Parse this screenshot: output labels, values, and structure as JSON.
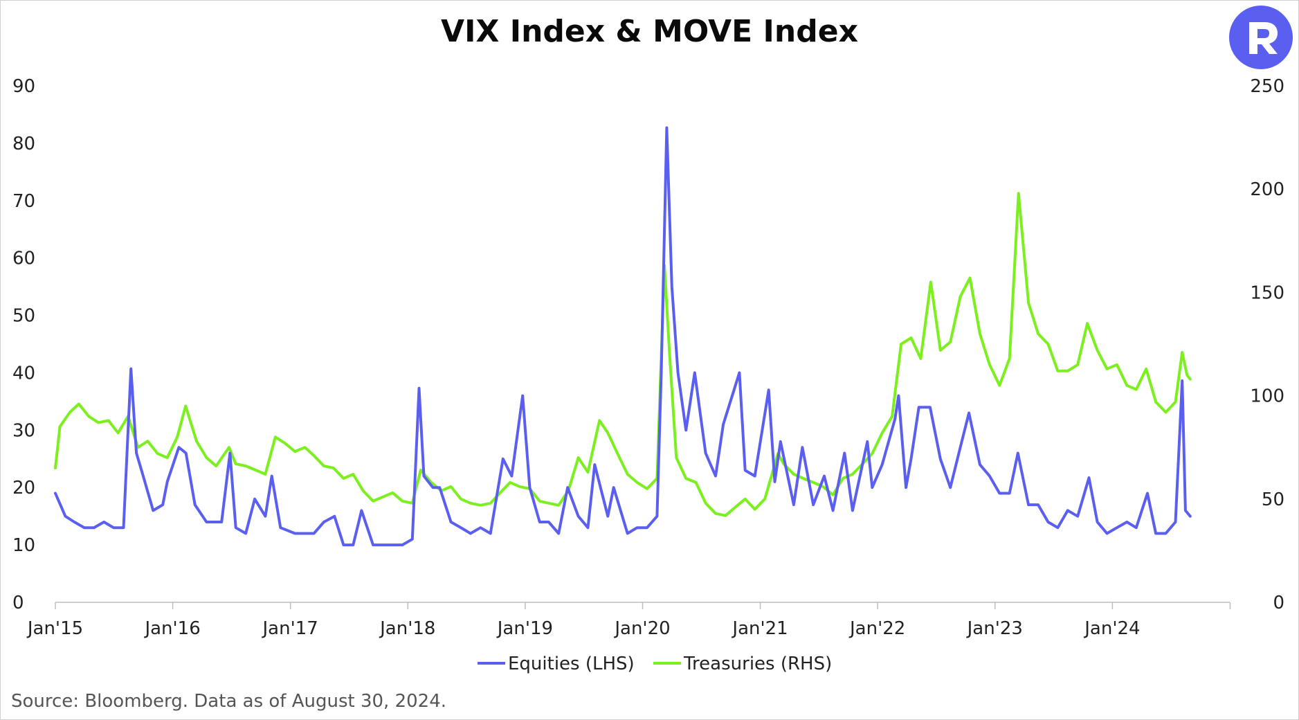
{
  "chart_data": {
    "type": "line",
    "title": "VIX Index & MOVE Index",
    "source": "Source: Bloomberg. Data as of August 30, 2024.",
    "x_tick_labels": [
      "Jan'15",
      "Jan'16",
      "Jan'17",
      "Jan'18",
      "Jan'19",
      "Jan'20",
      "Jan'21",
      "Jan'22",
      "Jan'23",
      "Jan'24"
    ],
    "y_left": {
      "ticks": [
        0,
        10,
        20,
        30,
        40,
        50,
        60,
        70,
        80,
        90
      ],
      "range": [
        0,
        90
      ]
    },
    "y_right": {
      "ticks": [
        0,
        50,
        100,
        150,
        200,
        250
      ],
      "range": [
        0,
        250
      ]
    },
    "x_range": [
      "2015-01-01",
      "2024-12-31"
    ],
    "legend_position": "bottom-center",
    "grid": false,
    "series": [
      {
        "name": "Equities (LHS)",
        "axis": "left",
        "color": "#5b5ff0",
        "points": [
          [
            "2015-01-01",
            19
          ],
          [
            "2015-02-01",
            15
          ],
          [
            "2015-03-01",
            14
          ],
          [
            "2015-04-01",
            13
          ],
          [
            "2015-05-01",
            13
          ],
          [
            "2015-06-01",
            14
          ],
          [
            "2015-07-01",
            13
          ],
          [
            "2015-08-01",
            13
          ],
          [
            "2015-08-24",
            40.7
          ],
          [
            "2015-09-10",
            26
          ],
          [
            "2015-10-01",
            22
          ],
          [
            "2015-11-01",
            16
          ],
          [
            "2015-12-01",
            17
          ],
          [
            "2015-12-15",
            21
          ],
          [
            "2016-01-20",
            27
          ],
          [
            "2016-02-11",
            26
          ],
          [
            "2016-03-10",
            17
          ],
          [
            "2016-04-15",
            14
          ],
          [
            "2016-05-15",
            14
          ],
          [
            "2016-06-01",
            14
          ],
          [
            "2016-06-27",
            26
          ],
          [
            "2016-07-15",
            13
          ],
          [
            "2016-08-15",
            12
          ],
          [
            "2016-09-12",
            18
          ],
          [
            "2016-10-15",
            15
          ],
          [
            "2016-11-04",
            22
          ],
          [
            "2016-12-01",
            13
          ],
          [
            "2017-01-15",
            12
          ],
          [
            "2017-03-15",
            12
          ],
          [
            "2017-04-15",
            14
          ],
          [
            "2017-05-18",
            15
          ],
          [
            "2017-06-15",
            10
          ],
          [
            "2017-07-15",
            10
          ],
          [
            "2017-08-10",
            16
          ],
          [
            "2017-09-15",
            10
          ],
          [
            "2017-10-15",
            10
          ],
          [
            "2017-11-15",
            10
          ],
          [
            "2017-12-15",
            10
          ],
          [
            "2018-01-15",
            11
          ],
          [
            "2018-02-05",
            37.3
          ],
          [
            "2018-02-20",
            22
          ],
          [
            "2018-03-20",
            20
          ],
          [
            "2018-04-10",
            20
          ],
          [
            "2018-05-15",
            14
          ],
          [
            "2018-06-15",
            13
          ],
          [
            "2018-07-15",
            12
          ],
          [
            "2018-08-15",
            13
          ],
          [
            "2018-09-15",
            12
          ],
          [
            "2018-10-24",
            25
          ],
          [
            "2018-11-20",
            22
          ],
          [
            "2018-12-24",
            36
          ],
          [
            "2019-01-15",
            20
          ],
          [
            "2019-02-15",
            14
          ],
          [
            "2019-03-15",
            14
          ],
          [
            "2019-04-15",
            12
          ],
          [
            "2019-05-13",
            20
          ],
          [
            "2019-06-15",
            15
          ],
          [
            "2019-07-15",
            13
          ],
          [
            "2019-08-05",
            24
          ],
          [
            "2019-09-15",
            15
          ],
          [
            "2019-10-03",
            20
          ],
          [
            "2019-11-15",
            12
          ],
          [
            "2019-12-15",
            13
          ],
          [
            "2020-01-15",
            13
          ],
          [
            "2020-02-15",
            15
          ],
          [
            "2020-02-28",
            40
          ],
          [
            "2020-03-16",
            82.7
          ],
          [
            "2020-04-01",
            55
          ],
          [
            "2020-04-20",
            40
          ],
          [
            "2020-05-15",
            30
          ],
          [
            "2020-06-11",
            40
          ],
          [
            "2020-07-15",
            26
          ],
          [
            "2020-08-15",
            22
          ],
          [
            "2020-09-08",
            31
          ],
          [
            "2020-10-28",
            40
          ],
          [
            "2020-11-15",
            23
          ],
          [
            "2020-12-15",
            22
          ],
          [
            "2021-01-27",
            37
          ],
          [
            "2021-02-15",
            21
          ],
          [
            "2021-03-05",
            28
          ],
          [
            "2021-04-15",
            17
          ],
          [
            "2021-05-12",
            27
          ],
          [
            "2021-06-15",
            17
          ],
          [
            "2021-07-19",
            22
          ],
          [
            "2021-08-15",
            16
          ],
          [
            "2021-09-20",
            26
          ],
          [
            "2021-10-15",
            16
          ],
          [
            "2021-11-30",
            28
          ],
          [
            "2021-12-15",
            20
          ],
          [
            "2022-01-15",
            24
          ],
          [
            "2022-02-24",
            32
          ],
          [
            "2022-03-07",
            36
          ],
          [
            "2022-03-30",
            20
          ],
          [
            "2022-04-15",
            25
          ],
          [
            "2022-05-09",
            34
          ],
          [
            "2022-06-13",
            34
          ],
          [
            "2022-07-15",
            25
          ],
          [
            "2022-08-15",
            20
          ],
          [
            "2022-09-15",
            27
          ],
          [
            "2022-10-12",
            33
          ],
          [
            "2022-11-15",
            24
          ],
          [
            "2022-12-15",
            22
          ],
          [
            "2023-01-15",
            19
          ],
          [
            "2023-02-15",
            19
          ],
          [
            "2023-03-13",
            26
          ],
          [
            "2023-04-15",
            17
          ],
          [
            "2023-05-15",
            17
          ],
          [
            "2023-06-15",
            14
          ],
          [
            "2023-07-15",
            13
          ],
          [
            "2023-08-15",
            16
          ],
          [
            "2023-09-15",
            15
          ],
          [
            "2023-10-20",
            21.7
          ],
          [
            "2023-11-15",
            14
          ],
          [
            "2023-12-15",
            12
          ],
          [
            "2024-01-15",
            13
          ],
          [
            "2024-02-15",
            14
          ],
          [
            "2024-03-15",
            13
          ],
          [
            "2024-04-19",
            19
          ],
          [
            "2024-05-15",
            12
          ],
          [
            "2024-06-15",
            12
          ],
          [
            "2024-07-15",
            14
          ],
          [
            "2024-08-05",
            38.6
          ],
          [
            "2024-08-15",
            16
          ],
          [
            "2024-08-30",
            15
          ]
        ]
      },
      {
        "name": "Treasuries (RHS)",
        "axis": "right",
        "color": "#7cf01e",
        "points": [
          [
            "2015-01-01",
            65
          ],
          [
            "2015-01-15",
            85
          ],
          [
            "2015-02-15",
            92
          ],
          [
            "2015-03-15",
            96
          ],
          [
            "2015-04-15",
            90
          ],
          [
            "2015-05-15",
            87
          ],
          [
            "2015-06-15",
            88
          ],
          [
            "2015-07-15",
            82
          ],
          [
            "2015-08-15",
            90
          ],
          [
            "2015-09-15",
            75
          ],
          [
            "2015-10-15",
            78
          ],
          [
            "2015-11-15",
            72
          ],
          [
            "2015-12-15",
            70
          ],
          [
            "2016-01-15",
            80
          ],
          [
            "2016-02-10",
            95
          ],
          [
            "2016-03-15",
            78
          ],
          [
            "2016-04-15",
            70
          ],
          [
            "2016-05-15",
            66
          ],
          [
            "2016-06-24",
            75
          ],
          [
            "2016-07-15",
            67
          ],
          [
            "2016-08-15",
            66
          ],
          [
            "2016-09-15",
            64
          ],
          [
            "2016-10-15",
            62
          ],
          [
            "2016-11-15",
            80
          ],
          [
            "2016-12-15",
            77
          ],
          [
            "2017-01-15",
            73
          ],
          [
            "2017-02-15",
            75
          ],
          [
            "2017-03-15",
            71
          ],
          [
            "2017-04-15",
            66
          ],
          [
            "2017-05-15",
            65
          ],
          [
            "2017-06-15",
            60
          ],
          [
            "2017-07-15",
            62
          ],
          [
            "2017-08-15",
            54
          ],
          [
            "2017-09-15",
            49
          ],
          [
            "2017-10-15",
            51
          ],
          [
            "2017-11-15",
            53
          ],
          [
            "2017-12-15",
            49
          ],
          [
            "2018-01-15",
            48
          ],
          [
            "2018-02-10",
            64
          ],
          [
            "2018-03-15",
            58
          ],
          [
            "2018-04-15",
            54
          ],
          [
            "2018-05-15",
            56
          ],
          [
            "2018-06-15",
            50
          ],
          [
            "2018-07-15",
            48
          ],
          [
            "2018-08-15",
            47
          ],
          [
            "2018-09-15",
            48
          ],
          [
            "2018-10-15",
            53
          ],
          [
            "2018-11-15",
            58
          ],
          [
            "2018-12-15",
            56
          ],
          [
            "2019-01-15",
            55
          ],
          [
            "2019-02-15",
            49
          ],
          [
            "2019-03-15",
            48
          ],
          [
            "2019-04-15",
            47
          ],
          [
            "2019-05-15",
            54
          ],
          [
            "2019-06-15",
            70
          ],
          [
            "2019-07-15",
            63
          ],
          [
            "2019-08-20",
            88
          ],
          [
            "2019-09-15",
            82
          ],
          [
            "2019-10-15",
            72
          ],
          [
            "2019-11-15",
            62
          ],
          [
            "2019-12-15",
            58
          ],
          [
            "2020-01-15",
            55
          ],
          [
            "2020-02-15",
            60
          ],
          [
            "2020-03-09",
            163
          ],
          [
            "2020-03-25",
            120
          ],
          [
            "2020-04-15",
            70
          ],
          [
            "2020-05-15",
            60
          ],
          [
            "2020-06-15",
            58
          ],
          [
            "2020-07-15",
            48
          ],
          [
            "2020-08-15",
            43
          ],
          [
            "2020-09-15",
            42
          ],
          [
            "2020-10-15",
            46
          ],
          [
            "2020-11-15",
            50
          ],
          [
            "2020-12-15",
            45
          ],
          [
            "2021-01-15",
            50
          ],
          [
            "2021-02-25",
            72
          ],
          [
            "2021-03-15",
            67
          ],
          [
            "2021-04-15",
            62
          ],
          [
            "2021-05-15",
            60
          ],
          [
            "2021-06-15",
            58
          ],
          [
            "2021-07-15",
            56
          ],
          [
            "2021-08-15",
            52
          ],
          [
            "2021-09-15",
            60
          ],
          [
            "2021-10-15",
            62
          ],
          [
            "2021-11-15",
            67
          ],
          [
            "2021-12-15",
            72
          ],
          [
            "2022-01-15",
            82
          ],
          [
            "2022-02-15",
            90
          ],
          [
            "2022-03-15",
            125
          ],
          [
            "2022-04-15",
            128
          ],
          [
            "2022-05-15",
            118
          ],
          [
            "2022-06-15",
            155
          ],
          [
            "2022-07-15",
            122
          ],
          [
            "2022-08-15",
            126
          ],
          [
            "2022-09-15",
            148
          ],
          [
            "2022-10-15",
            157
          ],
          [
            "2022-11-15",
            130
          ],
          [
            "2022-12-15",
            115
          ],
          [
            "2023-01-15",
            105
          ],
          [
            "2023-02-15",
            118
          ],
          [
            "2023-03-15",
            198
          ],
          [
            "2023-04-15",
            145
          ],
          [
            "2023-05-15",
            130
          ],
          [
            "2023-06-15",
            125
          ],
          [
            "2023-07-15",
            112
          ],
          [
            "2023-08-15",
            112
          ],
          [
            "2023-09-15",
            115
          ],
          [
            "2023-10-15",
            135
          ],
          [
            "2023-11-15",
            122
          ],
          [
            "2023-12-15",
            113
          ],
          [
            "2024-01-15",
            115
          ],
          [
            "2024-02-15",
            105
          ],
          [
            "2024-03-15",
            103
          ],
          [
            "2024-04-15",
            113
          ],
          [
            "2024-05-15",
            97
          ],
          [
            "2024-06-15",
            92
          ],
          [
            "2024-07-15",
            97
          ],
          [
            "2024-08-05",
            121
          ],
          [
            "2024-08-20",
            110
          ],
          [
            "2024-08-30",
            108
          ]
        ]
      }
    ]
  }
}
